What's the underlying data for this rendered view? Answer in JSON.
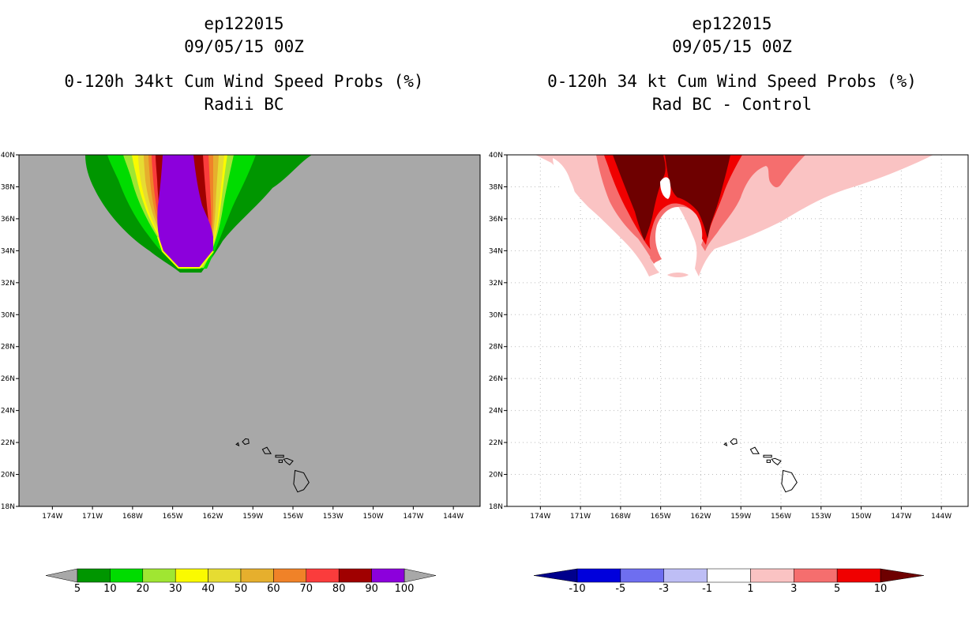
{
  "chart_data": [
    {
      "type": "heatmap",
      "title_lines": [
        "ep122015",
        "09/05/15 00Z",
        "0-120h 34kt Cum Wind Speed Probs (%)",
        "Radii BC"
      ],
      "lon_ticks": [
        "174W",
        "171W",
        "168W",
        "165W",
        "162W",
        "159W",
        "156W",
        "153W",
        "150W",
        "147W",
        "144W"
      ],
      "lat_ticks": [
        "40N",
        "38N",
        "36N",
        "34N",
        "32N",
        "30N",
        "28N",
        "26N",
        "24N",
        "22N",
        "20N",
        "18N"
      ],
      "lon_range": [
        -176.5,
        -142
      ],
      "lat_range": [
        18,
        40
      ],
      "background_color": "#a8a8a8",
      "grid": false,
      "colorbar": {
        "labels": [
          "5",
          "10",
          "20",
          "30",
          "40",
          "50",
          "60",
          "70",
          "80",
          "90",
          "100"
        ],
        "colors": [
          "#009600",
          "#00dc00",
          "#a0e632",
          "#fafa00",
          "#e6dc32",
          "#e6af2d",
          "#f08228",
          "#fa3c3c",
          "#a00000",
          "#8c00dc"
        ],
        "under_color": "#a8a8a8",
        "over_color": "#a8a8a8"
      }
    },
    {
      "type": "heatmap",
      "title_lines": [
        "ep122015",
        "09/05/15 00Z",
        "0-120h 34 kt Cum Wind Speed Probs (%)",
        "Rad BC - Control"
      ],
      "lon_ticks": [
        "174W",
        "171W",
        "168W",
        "165W",
        "162W",
        "159W",
        "156W",
        "153W",
        "150W",
        "147W",
        "144W"
      ],
      "lat_ticks": [
        "40N",
        "38N",
        "36N",
        "34N",
        "32N",
        "30N",
        "28N",
        "26N",
        "24N",
        "22N",
        "20N",
        "18N"
      ],
      "lon_range": [
        -176.5,
        -142
      ],
      "lat_range": [
        18,
        40
      ],
      "background_color": "#ffffff",
      "grid": true,
      "colorbar": {
        "labels": [
          "-10",
          "-5",
          "-3",
          "-1",
          "1",
          "3",
          "5",
          "10"
        ],
        "colors": [
          "#0000dc",
          "#6e6ef0",
          "#bebef5",
          "#ffffff",
          "#fac3c3",
          "#f56e6e",
          "#f00000"
        ],
        "under_color": "#00008c",
        "over_color": "#6e0000"
      }
    }
  ]
}
